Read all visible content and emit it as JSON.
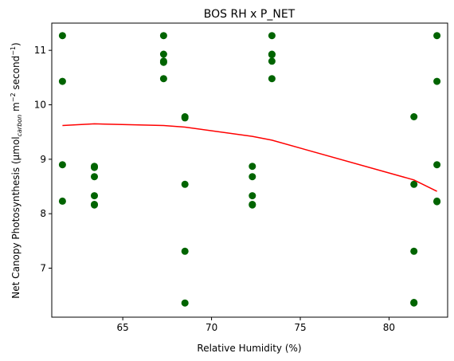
{
  "chart_data": {
    "type": "scatter",
    "title": "BOS RH x P_NET",
    "xlabel": "Relative Humidity (%)",
    "ylabel_main": "Net Canopy Photosynthesis (µmol",
    "ylabel_sub": "carbon",
    "ylabel_unit1": " m",
    "ylabel_sup1": "−2",
    "ylabel_unit2": " second",
    "ylabel_sup2": "−1",
    "ylabel_close": ")",
    "xlim": [
      61.0,
      83.3
    ],
    "ylim": [
      6.1,
      11.5
    ],
    "xticks": [
      65,
      70,
      75,
      80
    ],
    "yticks": [
      7,
      8,
      9,
      10,
      11
    ],
    "grid": false,
    "colors": {
      "points": "#006400",
      "trend": "#ff0000"
    },
    "series": [
      {
        "kind": "points",
        "x": [
          61.6,
          61.6,
          61.6,
          61.6,
          63.4,
          63.4,
          63.4,
          63.4,
          63.4,
          63.4,
          67.3,
          67.3,
          67.3,
          67.3,
          67.3,
          68.5,
          68.5,
          68.5,
          68.5,
          68.5,
          72.3,
          72.3,
          72.3,
          72.3,
          72.3,
          73.4,
          73.4,
          73.4,
          73.4,
          73.4,
          81.4,
          81.4,
          81.4,
          81.4,
          81.4,
          82.7,
          82.7,
          82.7,
          82.7,
          82.7
        ],
        "y": [
          11.27,
          10.43,
          8.9,
          8.23,
          8.87,
          8.85,
          8.68,
          8.33,
          8.17,
          8.16,
          11.27,
          10.93,
          10.8,
          10.78,
          10.48,
          9.78,
          9.76,
          8.54,
          7.31,
          6.36,
          8.87,
          8.68,
          8.33,
          8.17,
          8.16,
          11.27,
          10.93,
          10.92,
          10.8,
          10.48,
          9.78,
          8.54,
          7.31,
          6.37,
          6.36,
          11.27,
          10.43,
          8.9,
          8.23,
          8.22
        ]
      },
      {
        "kind": "trend",
        "x": [
          61.6,
          63.4,
          67.3,
          68.5,
          72.3,
          73.4,
          81.4,
          82.7
        ],
        "y": [
          9.62,
          9.65,
          9.62,
          9.59,
          9.42,
          9.35,
          8.62,
          8.41
        ]
      }
    ]
  }
}
